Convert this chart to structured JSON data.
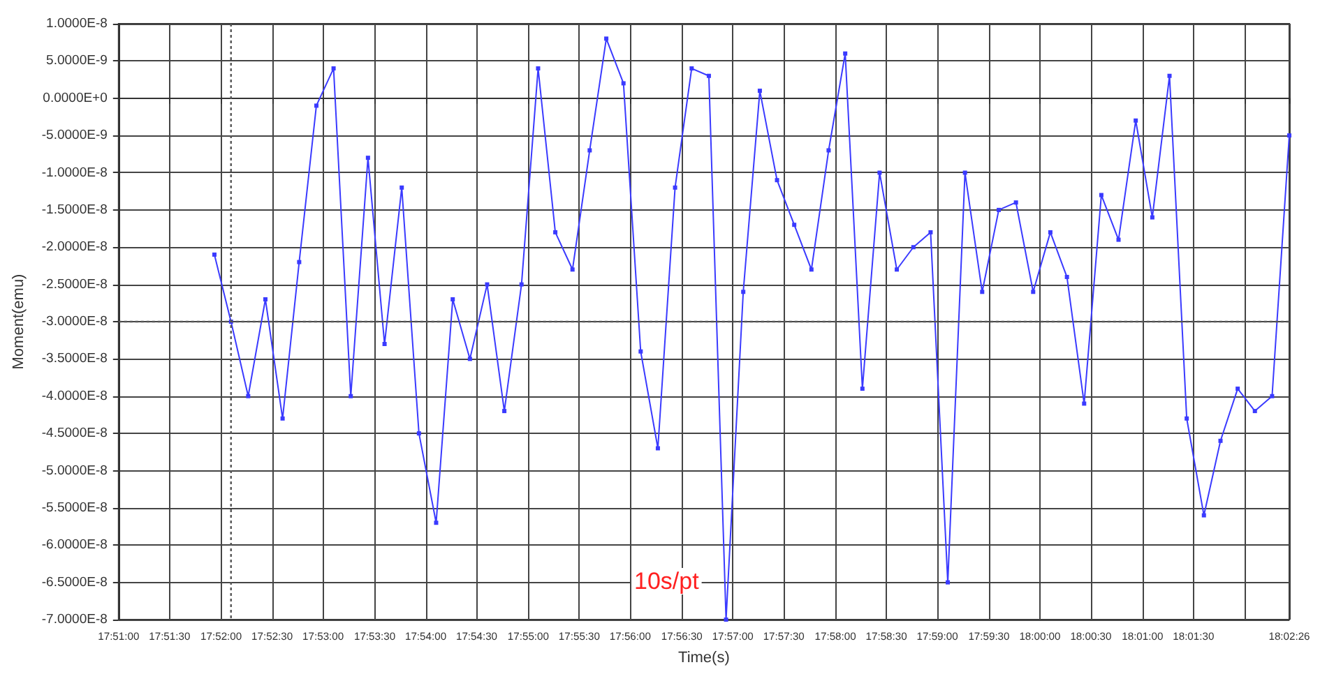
{
  "chart_data": {
    "type": "line",
    "xlabel": "Time(s)",
    "ylabel": "Moment(emu)",
    "annotations": [
      "10s/pt"
    ],
    "x": [
      17.8656,
      17.8683,
      17.8711,
      17.8739,
      17.8767,
      17.8794,
      17.8822,
      17.885,
      17.8878,
      17.8906,
      17.8933,
      17.8961,
      17.8989,
      17.9017,
      17.9044,
      17.9072,
      17.91,
      17.9128,
      17.9156,
      17.9183,
      17.9211,
      17.9239,
      17.9267,
      17.9294,
      17.9322,
      17.935,
      17.9378,
      17.9406,
      17.9433,
      17.9461,
      17.9489,
      17.9517,
      17.9544,
      17.9572,
      17.96,
      17.9628,
      17.9656,
      17.9683,
      17.9711,
      17.9739,
      17.9767,
      17.9794,
      17.9822,
      17.985,
      17.9878,
      17.9906,
      17.9933,
      17.9961,
      17.9989,
      18.0017,
      18.0044,
      18.0072,
      18.01,
      18.0128,
      18.0156,
      18.0183,
      18.0211,
      18.0239,
      18.0267,
      18.0294,
      18.0322,
      18.035,
      18.0378,
      18.0406
    ],
    "series": [
      {
        "color": "#3a3aff",
        "values": [
          -2.1e-08,
          -3e-08,
          -4e-08,
          -2.7e-08,
          -4.3e-08,
          -2.2e-08,
          -1e-09,
          4e-09,
          -4e-08,
          -8e-09,
          -3.3e-08,
          -1.2e-08,
          -4.5e-08,
          -5.7e-08,
          -2.7e-08,
          -3.5e-08,
          -2.5e-08,
          -4.2e-08,
          -2.5e-08,
          4e-09,
          -1.8e-08,
          -2.3e-08,
          -7e-09,
          8e-09,
          2e-09,
          -3.4e-08,
          -4.7e-08,
          -1.2e-08,
          4e-09,
          3e-09,
          -7e-08,
          -2.6e-08,
          1e-09,
          -1.1e-08,
          -1.7e-08,
          -2.3e-08,
          -7e-09,
          6e-09,
          -3.9e-08,
          -1e-08,
          -2.3e-08,
          -2e-08,
          -1.8e-08,
          -6.5e-08,
          -1e-08,
          -2.6e-08,
          -1.5e-08,
          -1.4e-08,
          -2.6e-08,
          -1.8e-08,
          -2.4e-08,
          -4.1e-08,
          -1.3e-08,
          -1.9e-08,
          -3e-09,
          -1.6e-08,
          3e-09,
          -4.3e-08,
          -5.6e-08,
          -4.6e-08,
          -3.9e-08,
          -4.2e-08,
          -4e-08,
          -5e-09
        ]
      }
    ],
    "xlim": [
      17.85,
      18.0406
    ],
    "xticks": [
      {
        "value": 17.85,
        "label": "17:51:00"
      },
      {
        "value": 17.8583,
        "label": "17:51:30"
      },
      {
        "value": 17.8667,
        "label": "17:52:00"
      },
      {
        "value": 17.875,
        "label": "17:52:30"
      },
      {
        "value": 17.8833,
        "label": "17:53:00"
      },
      {
        "value": 17.8917,
        "label": "17:53:30"
      },
      {
        "value": 17.9,
        "label": "17:54:00"
      },
      {
        "value": 17.9083,
        "label": "17:54:30"
      },
      {
        "value": 17.9167,
        "label": "17:55:00"
      },
      {
        "value": 17.925,
        "label": "17:55:30"
      },
      {
        "value": 17.9333,
        "label": "17:56:00"
      },
      {
        "value": 17.9417,
        "label": "17:56:30"
      },
      {
        "value": 17.95,
        "label": "17:57:00"
      },
      {
        "value": 17.9583,
        "label": "17:57:30"
      },
      {
        "value": 17.9667,
        "label": "17:58:00"
      },
      {
        "value": 17.975,
        "label": "17:58:30"
      },
      {
        "value": 17.9833,
        "label": "17:59:00"
      },
      {
        "value": 17.9917,
        "label": "17:59:30"
      },
      {
        "value": 18.0,
        "label": "18:00:00"
      },
      {
        "value": 18.0083,
        "label": "18:00:30"
      },
      {
        "value": 18.0167,
        "label": "18:01:00"
      },
      {
        "value": 18.025,
        "label": "18:01:30"
      },
      {
        "value": 18.0333,
        "label": null
      },
      {
        "value": 18.0406,
        "label": "18:02:26"
      }
    ],
    "ylim": [
      -7e-08,
      1e-08
    ],
    "yticks": [
      {
        "value": 1e-08,
        "label": "1.0000E-8"
      },
      {
        "value": 5e-09,
        "label": "5.0000E-9"
      },
      {
        "value": 0,
        "label": "0.0000E+0"
      },
      {
        "value": -5e-09,
        "label": "-5.0000E-9"
      },
      {
        "value": -1e-08,
        "label": "-1.0000E-8"
      },
      {
        "value": -1.5e-08,
        "label": "-1.5000E-8"
      },
      {
        "value": -2e-08,
        "label": "-2.0000E-8"
      },
      {
        "value": -2.5e-08,
        "label": "-2.5000E-8"
      },
      {
        "value": -3e-08,
        "label": "-3.0000E-8"
      },
      {
        "value": -3.5e-08,
        "label": "-3.5000E-8"
      },
      {
        "value": -4e-08,
        "label": "-4.0000E-8"
      },
      {
        "value": -4.5e-08,
        "label": "-4.5000E-8"
      },
      {
        "value": -5e-08,
        "label": "-5.0000E-8"
      },
      {
        "value": -5.5e-08,
        "label": "-5.5000E-8"
      },
      {
        "value": -6e-08,
        "label": "-6.0000E-8"
      },
      {
        "value": -6.5e-08,
        "label": "-6.5000E-8"
      },
      {
        "value": -7e-08,
        "label": "-7.0000E-8"
      }
    ],
    "ref_lines": [
      {
        "axis": "y",
        "value": -3e-08,
        "color": "#555555",
        "line_style": "dotted"
      },
      {
        "axis": "x",
        "value": 17.8683,
        "color": "#555555",
        "line_style": "dotted"
      }
    ],
    "grid": true,
    "marker": "square",
    "line_style": "solid"
  }
}
